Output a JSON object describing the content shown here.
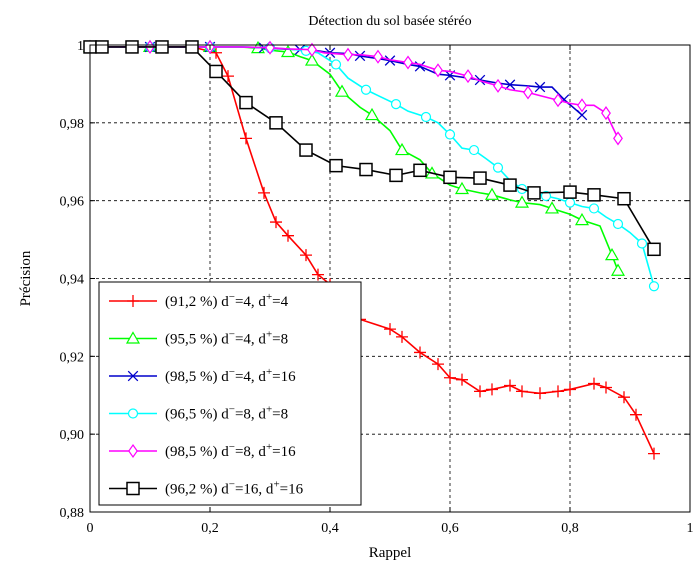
{
  "chart_data": {
    "type": "line",
    "title": "Détection du sol basée stéréo",
    "xlabel": "Rappel",
    "ylabel": "Précision",
    "xlim": [
      0,
      1
    ],
    "ylim": [
      0.88,
      1.0
    ],
    "grid": true,
    "legend_position": "bottom-left",
    "x_ticks": [
      {
        "value": 0,
        "label": "0"
      },
      {
        "value": 0.2,
        "label": "0,2"
      },
      {
        "value": 0.4,
        "label": "0,4"
      },
      {
        "value": 0.6,
        "label": "0,6"
      },
      {
        "value": 0.8,
        "label": "0,8"
      },
      {
        "value": 1.0,
        "label": "1"
      }
    ],
    "y_ticks": [
      {
        "value": 0.88,
        "label": "0,88"
      },
      {
        "value": 0.9,
        "label": "0,90"
      },
      {
        "value": 0.92,
        "label": "0,92"
      },
      {
        "value": 0.94,
        "label": "0,94"
      },
      {
        "value": 0.96,
        "label": "0,96"
      },
      {
        "value": 0.98,
        "label": "0,98"
      },
      {
        "value": 1.0,
        "label": "1"
      }
    ],
    "series": [
      {
        "name": "(91,2 %) d⁻=4, d⁺=4",
        "legend": {
          "prefix": "(91,2 %) d",
          "a": "=4, d",
          "b": "=4"
        },
        "color": "#ff0000",
        "marker": "plus",
        "marker_every": 1,
        "x": [
          0.0,
          0.02,
          0.07,
          0.12,
          0.17,
          0.21,
          0.23,
          0.26,
          0.29,
          0.31,
          0.33,
          0.36,
          0.38,
          0.4,
          0.45,
          0.5,
          0.52,
          0.55,
          0.58,
          0.6,
          0.62,
          0.65,
          0.67,
          0.7,
          0.72,
          0.75,
          0.78,
          0.8,
          0.84,
          0.86,
          0.89,
          0.91,
          0.94
        ],
        "y": [
          0.9995,
          0.9995,
          0.9995,
          0.9995,
          0.9995,
          0.998,
          0.992,
          0.976,
          0.962,
          0.9545,
          0.951,
          0.946,
          0.941,
          0.9385,
          0.9295,
          0.927,
          0.925,
          0.921,
          0.918,
          0.9145,
          0.914,
          0.911,
          0.9115,
          0.9125,
          0.911,
          0.9105,
          0.911,
          0.9115,
          0.913,
          0.912,
          0.9095,
          0.905,
          0.895
        ]
      },
      {
        "name": "(95,5 %) d⁻=4, d⁺=8",
        "legend": {
          "prefix": "(95,5 %) d",
          "a": "=4, d",
          "b": "=8"
        },
        "color": "#00ff00",
        "marker": "triangle",
        "marker_every": 2,
        "x": [
          0.0,
          0.05,
          0.1,
          0.15,
          0.2,
          0.25,
          0.28,
          0.31,
          0.33,
          0.35,
          0.37,
          0.4,
          0.42,
          0.45,
          0.47,
          0.5,
          0.52,
          0.55,
          0.57,
          0.6,
          0.62,
          0.65,
          0.67,
          0.7,
          0.72,
          0.75,
          0.77,
          0.8,
          0.82,
          0.85,
          0.87,
          0.88
        ],
        "y": [
          0.9995,
          0.9995,
          0.9995,
          0.9995,
          0.9995,
          0.9995,
          0.9992,
          0.9985,
          0.9982,
          0.997,
          0.996,
          0.9925,
          0.988,
          0.984,
          0.982,
          0.978,
          0.973,
          0.9705,
          0.967,
          0.964,
          0.963,
          0.962,
          0.9615,
          0.9602,
          0.9595,
          0.959,
          0.958,
          0.9565,
          0.955,
          0.9535,
          0.946,
          0.942
        ]
      },
      {
        "name": "(98,5 %) d⁻=4, d⁺=16",
        "legend": {
          "prefix": "(98,5 %) d",
          "a": "=4, d",
          "b": "=16"
        },
        "color": "#0000cc",
        "marker": "x",
        "marker_every": 2,
        "x": [
          0.0,
          0.05,
          0.1,
          0.15,
          0.2,
          0.25,
          0.29,
          0.32,
          0.35,
          0.38,
          0.4,
          0.43,
          0.45,
          0.48,
          0.5,
          0.53,
          0.55,
          0.58,
          0.6,
          0.63,
          0.65,
          0.68,
          0.7,
          0.73,
          0.75,
          0.77,
          0.79,
          0.82
        ],
        "y": [
          0.9995,
          0.9995,
          0.9995,
          0.9995,
          0.9995,
          0.9995,
          0.9993,
          0.999,
          0.9988,
          0.9985,
          0.998,
          0.9978,
          0.9972,
          0.9965,
          0.996,
          0.995,
          0.9945,
          0.9925,
          0.9922,
          0.9915,
          0.991,
          0.9902,
          0.9898,
          0.9895,
          0.9892,
          0.9892,
          0.986,
          0.982
        ]
      },
      {
        "name": "(96,5 %) d⁻=8, d⁺=8",
        "legend": {
          "prefix": "(96,5 %) d",
          "a": "=8, d",
          "b": "=8"
        },
        "color": "#00ffff",
        "marker": "circle",
        "marker_every": 2,
        "x": [
          0.0,
          0.05,
          0.1,
          0.15,
          0.2,
          0.25,
          0.3,
          0.33,
          0.36,
          0.38,
          0.41,
          0.43,
          0.46,
          0.48,
          0.51,
          0.53,
          0.56,
          0.58,
          0.6,
          0.62,
          0.64,
          0.66,
          0.68,
          0.7,
          0.72,
          0.74,
          0.76,
          0.78,
          0.8,
          0.82,
          0.84,
          0.86,
          0.88,
          0.9,
          0.92,
          0.94
        ],
        "y": [
          0.9995,
          0.9995,
          0.9995,
          0.9995,
          0.9995,
          0.9995,
          0.9993,
          0.999,
          0.9985,
          0.998,
          0.995,
          0.9915,
          0.9885,
          0.987,
          0.9848,
          0.983,
          0.9815,
          0.98,
          0.977,
          0.9735,
          0.973,
          0.9708,
          0.9685,
          0.9652,
          0.963,
          0.9618,
          0.9612,
          0.9605,
          0.9595,
          0.9585,
          0.958,
          0.9558,
          0.954,
          0.9518,
          0.949,
          0.938
        ]
      },
      {
        "name": "(98,5 %) d⁻=8, d⁺=16",
        "legend": {
          "prefix": "(98,5 %) d",
          "a": "=8, d",
          "b": "=16"
        },
        "color": "#ff00ff",
        "marker": "diamond",
        "marker_every": 2,
        "x": [
          0.0,
          0.05,
          0.1,
          0.15,
          0.2,
          0.25,
          0.3,
          0.33,
          0.37,
          0.39,
          0.43,
          0.45,
          0.48,
          0.5,
          0.53,
          0.55,
          0.58,
          0.6,
          0.63,
          0.65,
          0.68,
          0.7,
          0.73,
          0.75,
          0.78,
          0.8,
          0.82,
          0.84,
          0.86,
          0.88
        ],
        "y": [
          0.9995,
          0.9995,
          0.9995,
          0.9995,
          0.9995,
          0.9995,
          0.9993,
          0.999,
          0.9988,
          0.998,
          0.9975,
          0.9975,
          0.997,
          0.9962,
          0.9955,
          0.995,
          0.9935,
          0.9932,
          0.992,
          0.9908,
          0.9895,
          0.9885,
          0.9878,
          0.987,
          0.9858,
          0.985,
          0.9845,
          0.9845,
          0.9825,
          0.976
        ]
      },
      {
        "name": "(96,2 %) d⁻=16, d⁺=16",
        "legend": {
          "prefix": "(96,2 %) d",
          "a": "=16, d",
          "b": "=16"
        },
        "color": "#000000",
        "marker": "square",
        "marker_every": 1,
        "x": [
          0.0,
          0.02,
          0.07,
          0.12,
          0.17,
          0.21,
          0.26,
          0.31,
          0.36,
          0.41,
          0.46,
          0.51,
          0.55,
          0.6,
          0.65,
          0.7,
          0.74,
          0.8,
          0.84,
          0.89,
          0.94
        ],
        "y": [
          0.9995,
          0.9995,
          0.9995,
          0.9995,
          0.9995,
          0.9932,
          0.9852,
          0.98,
          0.973,
          0.969,
          0.968,
          0.9665,
          0.9678,
          0.966,
          0.9658,
          0.964,
          0.962,
          0.9622,
          0.9615,
          0.9605,
          0.9475
        ]
      }
    ]
  }
}
